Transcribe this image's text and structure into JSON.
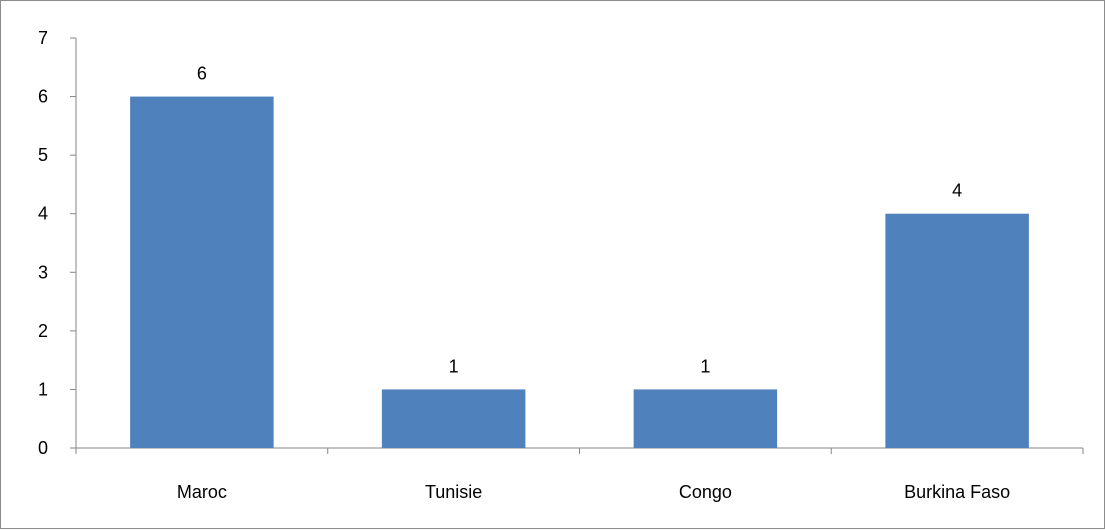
{
  "chart_data": {
    "type": "bar",
    "categories": [
      "Maroc",
      "Tunisie",
      "Congo",
      "Burkina Faso"
    ],
    "values": [
      6,
      1,
      1,
      4
    ],
    "data_labels": [
      "6",
      "1",
      "1",
      "4"
    ],
    "title": "",
    "xlabel": "",
    "ylabel": "",
    "ylim": [
      0,
      7
    ],
    "yticks": [
      "0",
      "1",
      "2",
      "3",
      "4",
      "5",
      "6",
      "7"
    ],
    "grid": false,
    "legend": "none",
    "bar_color": "#4F81BD",
    "axis_color": "#868686"
  }
}
